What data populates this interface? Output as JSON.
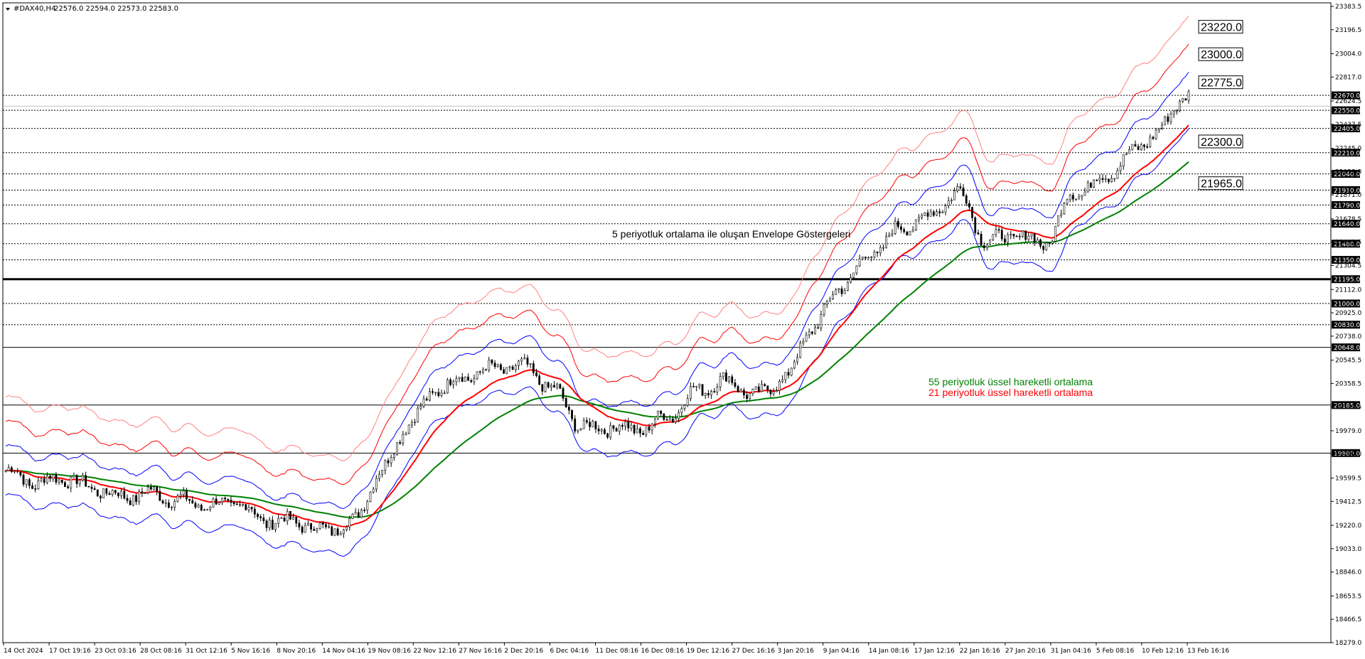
{
  "header": {
    "symbol": "#DAX40,H4",
    "ohlc": "22576.0 22594.0 22573.0 22583.0"
  },
  "chart_data": {
    "type": "candlestick",
    "ylim": [
      18279.0,
      23383.5
    ],
    "grid": false,
    "price_ticks": [
      "23383.5",
      "23196.5",
      "23004.0",
      "22817.0",
      "22624.5",
      "22437.5",
      "22245.0",
      "22058.0",
      "21871.0",
      "21678.5",
      "21491.5",
      "21304.5",
      "21112.0",
      "20925.0",
      "20738.0",
      "20545.5",
      "20358.5",
      "20171.5",
      "19979.0",
      "19792.0",
      "19599.5",
      "19412.5",
      "19220.0",
      "19033.0",
      "18846.0",
      "18653.5",
      "18466.5",
      "18279.0"
    ],
    "time_labels": [
      "14 Oct 2024",
      "17 Oct 19:16",
      "23 Oct 03:16",
      "28 Oct 08:16",
      "31 Oct 12:16",
      "5 Nov 16:16",
      "8 Nov 20:16",
      "14 Nov 04:16",
      "19 Nov 08:16",
      "22 Nov 12:16",
      "27 Nov 16:16",
      "2 Dec 20:16",
      "6 Dec 04:16",
      "11 Dec 08:16",
      "16 Dec 08:16",
      "19 Dec 12:16",
      "27 Dec 16:16",
      "3 Jan 20:16",
      "9 Jan 04:16",
      "14 Jan 08:16",
      "17 Jan 12:16",
      "22 Jan 16:16",
      "27 Jan 20:16",
      "31 Jan 04:16",
      "5 Feb 08:16",
      "10 Feb 12:16",
      "13 Feb 16:16"
    ],
    "dotted_levels": [
      "22670.0",
      "22550.0",
      "22405.0",
      "22210.0",
      "22040.0",
      "21910.0",
      "21790.0",
      "21640.0",
      "21480.0",
      "21350.0",
      "21000.0",
      "20830.0"
    ],
    "solid_levels": [
      "21195.0",
      "20648.0",
      "20185.0",
      "19800.0"
    ],
    "bold_level": "21195.0",
    "target_labels": [
      "23220.0",
      "23000.0",
      "22775.0",
      "22300.0",
      "21965.0"
    ],
    "ma_close_values": [
      19660,
      19560,
      19600,
      19520,
      19450,
      19480,
      19420,
      19380,
      19400,
      19260,
      19250,
      19180,
      19240,
      19650,
      20050,
      20320,
      20420,
      20480,
      20490,
      20300,
      20000,
      20010,
      19990,
      20100,
      20310,
      20380,
      20260,
      20400,
      20820,
      21150,
      21400,
      21600,
      21700,
      21900,
      21500,
      21550,
      21480,
      21880,
      22000,
      22200,
      22400,
      22700
    ],
    "colors": {
      "candle": "#000000",
      "ema21": "#ff0000",
      "ema55": "#008000",
      "envelope_inner": "#0000ff",
      "envelope_mid": "#ff0000",
      "envelope_outer": "#ff8080"
    }
  },
  "annotations": {
    "envelope": "5 periyotluk ortalama ile oluşan Envelope Göstergeleri",
    "ema55": "55 periyotluk üssel hareketli ortalama",
    "ema21": "21 periyotluk üssel hareketli ortalama"
  }
}
